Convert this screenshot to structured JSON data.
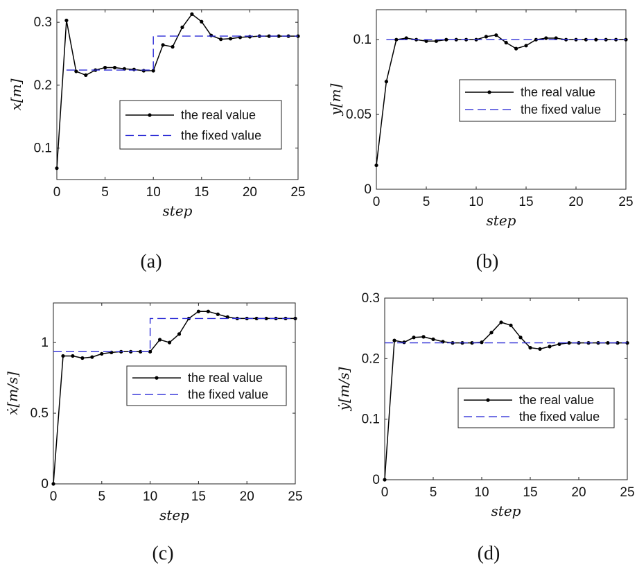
{
  "chart_data": [
    {
      "type": "line",
      "panel_label": "(a)",
      "xlabel": "step",
      "ylabel": "x[m]",
      "xlim": [
        0,
        25
      ],
      "ylim": [
        0.05,
        0.32
      ],
      "xticks": [
        0,
        5,
        10,
        15,
        20,
        25
      ],
      "yticks": [
        0.1,
        0.2,
        0.3
      ],
      "ytick_labels": [
        "0.1",
        "0.2",
        "0.3"
      ],
      "grid": false,
      "legend_position": "center-right",
      "series": [
        {
          "name": "the real value",
          "style": "solid-markers",
          "color": "#000000",
          "x": [
            0,
            1,
            2,
            3,
            4,
            5,
            6,
            7,
            8,
            9,
            10,
            11,
            12,
            13,
            14,
            15,
            16,
            17,
            18,
            19,
            20,
            21,
            22,
            23,
            24,
            25
          ],
          "y": [
            0.068,
            0.303,
            0.222,
            0.216,
            0.224,
            0.228,
            0.228,
            0.226,
            0.225,
            0.223,
            0.223,
            0.264,
            0.261,
            0.292,
            0.313,
            0.301,
            0.279,
            0.273,
            0.274,
            0.276,
            0.277,
            0.278,
            0.278,
            0.278,
            0.278,
            0.278
          ]
        },
        {
          "name": "the fixed value",
          "style": "dashed",
          "color": "#2b2bd6",
          "x": [
            1,
            10,
            10,
            25
          ],
          "y": [
            0.224,
            0.224,
            0.278,
            0.278
          ]
        }
      ]
    },
    {
      "type": "line",
      "panel_label": "(b)",
      "xlabel": "step",
      "ylabel": "y[m]",
      "xlim": [
        0,
        25
      ],
      "ylim": [
        0,
        0.12
      ],
      "xticks": [
        0,
        5,
        10,
        15,
        20,
        25
      ],
      "yticks": [
        0,
        0.05,
        0.1
      ],
      "ytick_labels": [
        "0",
        "0.05",
        "0.1"
      ],
      "grid": false,
      "legend_position": "center-right",
      "series": [
        {
          "name": "the real value",
          "style": "solid-markers",
          "color": "#000000",
          "x": [
            0,
            1,
            2,
            3,
            4,
            5,
            6,
            7,
            8,
            9,
            10,
            11,
            12,
            13,
            14,
            15,
            16,
            17,
            18,
            19,
            20,
            21,
            22,
            23,
            24,
            25
          ],
          "y": [
            0.016,
            0.072,
            0.1,
            0.101,
            0.1,
            0.099,
            0.099,
            0.1,
            0.1,
            0.1,
            0.1,
            0.102,
            0.103,
            0.098,
            0.094,
            0.096,
            0.1,
            0.101,
            0.101,
            0.1,
            0.1,
            0.1,
            0.1,
            0.1,
            0.1,
            0.1
          ]
        },
        {
          "name": "the fixed value",
          "style": "dashed",
          "color": "#2b2bd6",
          "x": [
            1,
            25
          ],
          "y": [
            0.1,
            0.1
          ]
        }
      ]
    },
    {
      "type": "line",
      "panel_label": "(c)",
      "xlabel": "step",
      "ylabel": "ẋ[m/s]",
      "xlim": [
        0,
        25
      ],
      "ylim": [
        0,
        1.28
      ],
      "xticks": [
        0,
        5,
        10,
        15,
        20,
        25
      ],
      "yticks": [
        0,
        0.5,
        1
      ],
      "ytick_labels": [
        "0",
        "0.5",
        "1"
      ],
      "grid": false,
      "legend_position": "center-right",
      "series": [
        {
          "name": "the real value",
          "style": "solid-markers",
          "color": "#000000",
          "x": [
            0,
            1,
            2,
            3,
            4,
            5,
            6,
            7,
            8,
            9,
            10,
            11,
            12,
            13,
            14,
            15,
            16,
            17,
            18,
            19,
            20,
            21,
            22,
            23,
            24,
            25
          ],
          "y": [
            0,
            0.905,
            0.905,
            0.89,
            0.897,
            0.92,
            0.93,
            0.935,
            0.935,
            0.935,
            0.935,
            1.02,
            1.0,
            1.06,
            1.17,
            1.22,
            1.22,
            1.2,
            1.18,
            1.17,
            1.17,
            1.17,
            1.17,
            1.17,
            1.17,
            1.17
          ]
        },
        {
          "name": "the fixed value",
          "style": "dashed",
          "color": "#2b2bd6",
          "x": [
            0,
            10,
            10,
            25
          ],
          "y": [
            0.935,
            0.935,
            1.17,
            1.17
          ]
        }
      ]
    },
    {
      "type": "line",
      "panel_label": "(d)",
      "xlabel": "step",
      "ylabel": "ẏ[m/s]",
      "xlim": [
        0,
        25
      ],
      "ylim": [
        0,
        0.3
      ],
      "xticks": [
        0,
        5,
        10,
        15,
        20,
        25
      ],
      "yticks": [
        0,
        0.1,
        0.2,
        0.3
      ],
      "ytick_labels": [
        "0",
        "0.1",
        "0.2",
        "0.3"
      ],
      "grid": false,
      "legend_position": "center-right",
      "series": [
        {
          "name": "the real value",
          "style": "solid-markers",
          "color": "#000000",
          "x": [
            0,
            1,
            2,
            3,
            4,
            5,
            6,
            7,
            8,
            9,
            10,
            11,
            12,
            13,
            14,
            15,
            16,
            17,
            18,
            19,
            20,
            21,
            22,
            23,
            24,
            25
          ],
          "y": [
            0,
            0.23,
            0.227,
            0.235,
            0.236,
            0.232,
            0.228,
            0.226,
            0.226,
            0.226,
            0.227,
            0.243,
            0.26,
            0.255,
            0.235,
            0.218,
            0.216,
            0.22,
            0.224,
            0.226,
            0.226,
            0.226,
            0.226,
            0.226,
            0.226,
            0.226
          ]
        },
        {
          "name": "the fixed value",
          "style": "dashed",
          "color": "#2b2bd6",
          "x": [
            0,
            25
          ],
          "y": [
            0.226,
            0.226
          ]
        }
      ]
    }
  ]
}
